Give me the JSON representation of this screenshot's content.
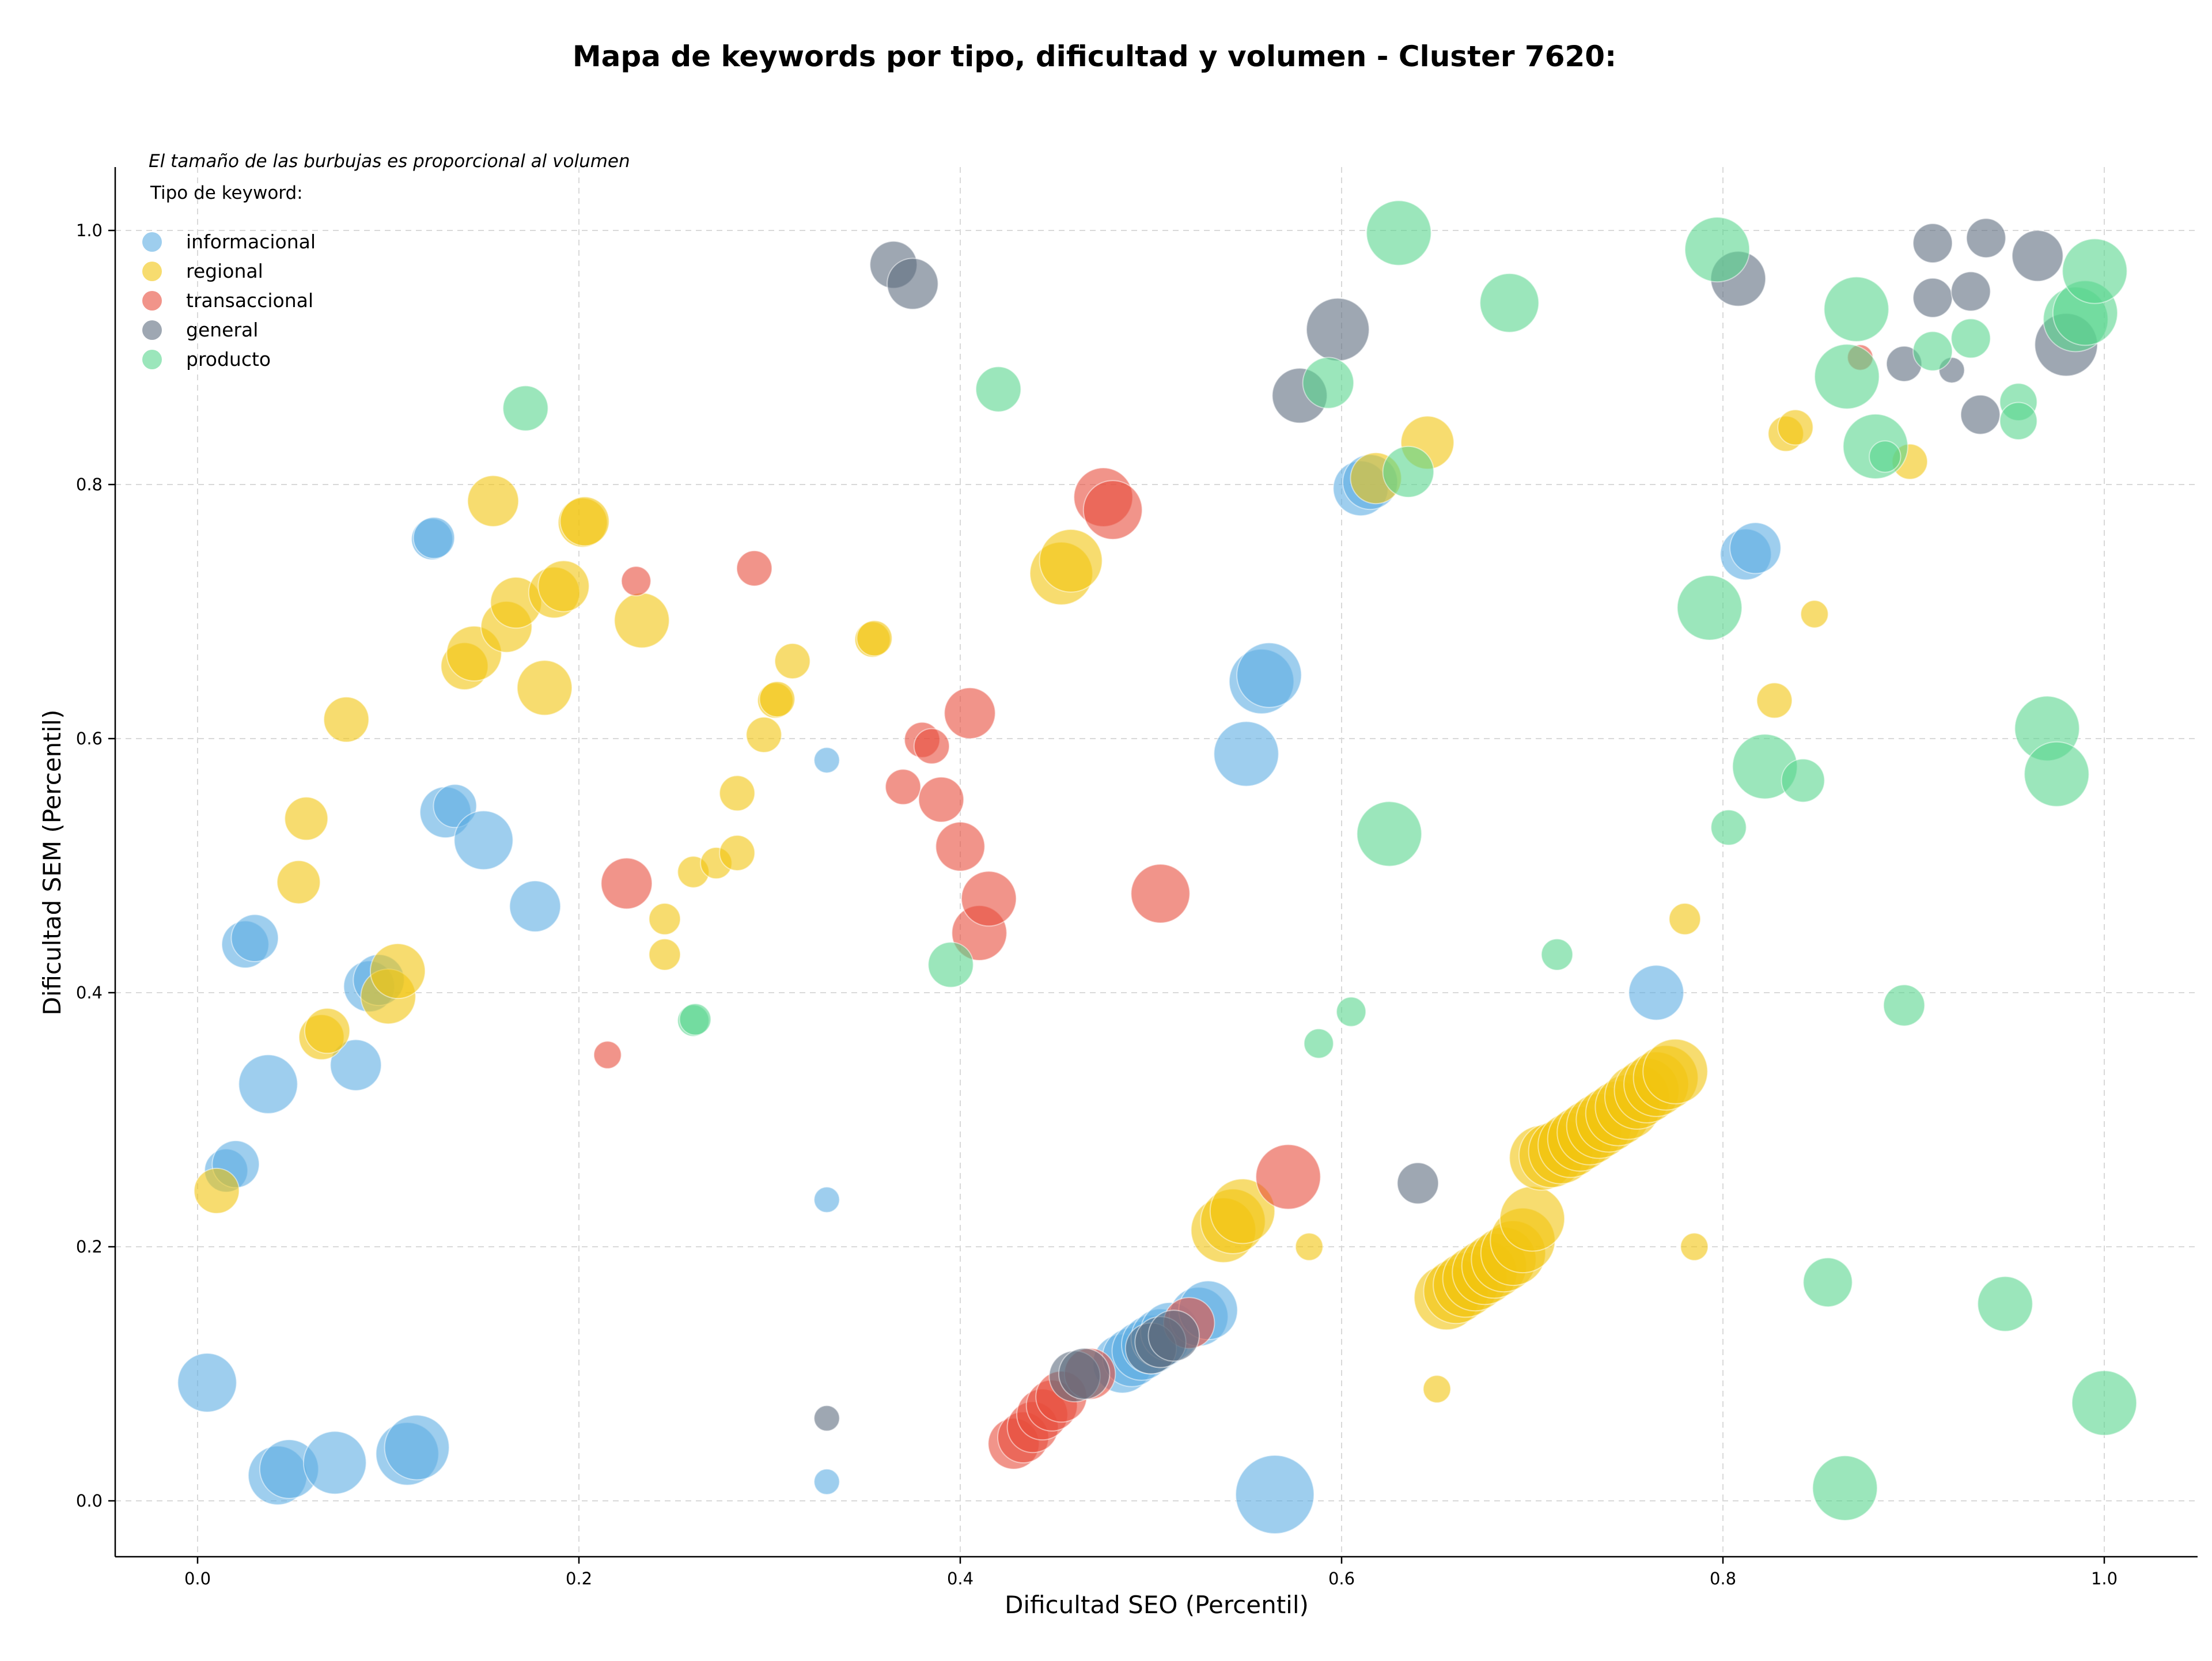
{
  "chart_data": {
    "type": "scatter",
    "title": "Mapa de keywords por tipo, dificultad y volumen - Cluster 7620:",
    "annotation": "El tamaño de las burbujas es proporcional al volumen",
    "xlabel": "Dificultad SEO (Percentil)",
    "ylabel": "Dificultad SEM (Percentil)",
    "xlim": [
      -0.044,
      1.048
    ],
    "ylim": [
      -0.044,
      1.05
    ],
    "xticks": [
      "0.0",
      "0.2",
      "0.4",
      "0.6",
      "0.8",
      "1.0"
    ],
    "yticks": [
      "0.0",
      "0.2",
      "0.4",
      "0.6",
      "0.8",
      "1.0"
    ],
    "grid": true,
    "legend": {
      "title": "Tipo de keyword:",
      "placement": "top-left"
    },
    "series": [
      {
        "name": "informacional",
        "color": "#5DADE2",
        "points": [
          [
            0.005,
            0.093,
            3
          ],
          [
            0.042,
            0.02,
            3
          ],
          [
            0.048,
            0.025,
            3
          ],
          [
            0.072,
            0.03,
            3.2
          ],
          [
            0.11,
            0.037,
            3.2
          ],
          [
            0.115,
            0.042,
            3.3
          ],
          [
            0.015,
            0.26,
            2.2
          ],
          [
            0.02,
            0.265,
            2.4
          ],
          [
            0.037,
            0.328,
            3
          ],
          [
            0.083,
            0.343,
            2.6
          ],
          [
            0.025,
            0.438,
            2.4
          ],
          [
            0.03,
            0.443,
            2.4
          ],
          [
            0.09,
            0.405,
            2.6
          ],
          [
            0.095,
            0.41,
            2.6
          ],
          [
            0.13,
            0.542,
            2.6
          ],
          [
            0.135,
            0.547,
            2.2
          ],
          [
            0.15,
            0.52,
            3
          ],
          [
            0.177,
            0.468,
            2.6
          ],
          [
            0.123,
            0.757,
            2.1
          ],
          [
            0.124,
            0.758,
            2.1
          ],
          [
            0.33,
            0.583,
            1.3
          ],
          [
            0.33,
            0.237,
            1.3
          ],
          [
            0.33,
            0.015,
            1.3
          ],
          [
            0.485,
            0.108,
            3
          ],
          [
            0.49,
            0.113,
            3
          ],
          [
            0.495,
            0.118,
            3
          ],
          [
            0.5,
            0.123,
            3
          ],
          [
            0.505,
            0.128,
            3
          ],
          [
            0.51,
            0.133,
            3
          ],
          [
            0.525,
            0.145,
            3
          ],
          [
            0.53,
            0.15,
            3
          ],
          [
            0.55,
            0.588,
            3.3
          ],
          [
            0.558,
            0.645,
            3.3
          ],
          [
            0.562,
            0.65,
            3.3
          ],
          [
            0.565,
            0.005,
            4
          ],
          [
            0.61,
            0.797,
            2.8
          ],
          [
            0.615,
            0.802,
            2.8
          ],
          [
            0.765,
            0.4,
            2.8
          ],
          [
            0.812,
            0.745,
            2.6
          ],
          [
            0.817,
            0.75,
            2.6
          ]
        ]
      },
      {
        "name": "regional",
        "color": "#F1C40F",
        "points": [
          [
            0.01,
            0.244,
            2.3
          ],
          [
            0.053,
            0.487,
            2.2
          ],
          [
            0.057,
            0.537,
            2.2
          ],
          [
            0.065,
            0.365,
            2.3
          ],
          [
            0.068,
            0.37,
            2.3
          ],
          [
            0.078,
            0.615,
            2.3
          ],
          [
            0.1,
            0.397,
            2.8
          ],
          [
            0.105,
            0.417,
            2.8
          ],
          [
            0.14,
            0.657,
            2.4
          ],
          [
            0.145,
            0.667,
            2.8
          ],
          [
            0.155,
            0.787,
            2.6
          ],
          [
            0.162,
            0.688,
            2.6
          ],
          [
            0.167,
            0.707,
            2.6
          ],
          [
            0.182,
            0.64,
            2.8
          ],
          [
            0.187,
            0.715,
            2.6
          ],
          [
            0.192,
            0.72,
            2.6
          ],
          [
            0.202,
            0.77,
            2.5
          ],
          [
            0.203,
            0.771,
            2.5
          ],
          [
            0.233,
            0.693,
            2.8
          ],
          [
            0.245,
            0.458,
            1.6
          ],
          [
            0.245,
            0.43,
            1.6
          ],
          [
            0.26,
            0.495,
            1.6
          ],
          [
            0.272,
            0.502,
            1.6
          ],
          [
            0.283,
            0.51,
            1.8
          ],
          [
            0.283,
            0.557,
            1.8
          ],
          [
            0.297,
            0.603,
            1.8
          ],
          [
            0.303,
            0.63,
            1.8
          ],
          [
            0.304,
            0.631,
            1.8
          ],
          [
            0.312,
            0.661,
            1.8
          ],
          [
            0.354,
            0.678,
            1.8
          ],
          [
            0.355,
            0.679,
            1.8
          ],
          [
            0.453,
            0.73,
            3.2
          ],
          [
            0.458,
            0.74,
            3.2
          ],
          [
            0.538,
            0.213,
            3.3
          ],
          [
            0.543,
            0.22,
            3.3
          ],
          [
            0.548,
            0.228,
            3.3
          ],
          [
            0.583,
            0.2,
            1.4
          ],
          [
            0.618,
            0.805,
            2.6
          ],
          [
            0.645,
            0.833,
            2.7
          ],
          [
            0.65,
            0.088,
            1.4
          ],
          [
            0.655,
            0.16,
            3.3
          ],
          [
            0.66,
            0.165,
            3.3
          ],
          [
            0.665,
            0.17,
            3.3
          ],
          [
            0.67,
            0.175,
            3.3
          ],
          [
            0.675,
            0.18,
            3.3
          ],
          [
            0.68,
            0.185,
            3.3
          ],
          [
            0.685,
            0.19,
            3.3
          ],
          [
            0.69,
            0.195,
            3.3
          ],
          [
            0.695,
            0.205,
            3.3
          ],
          [
            0.7,
            0.222,
            3.3
          ],
          [
            0.705,
            0.27,
            3.3
          ],
          [
            0.71,
            0.272,
            3.3
          ],
          [
            0.715,
            0.275,
            3.3
          ],
          [
            0.72,
            0.28,
            3.3
          ],
          [
            0.725,
            0.285,
            3.3
          ],
          [
            0.73,
            0.29,
            3.3
          ],
          [
            0.735,
            0.295,
            3.3
          ],
          [
            0.74,
            0.3,
            3.3
          ],
          [
            0.745,
            0.305,
            3.3
          ],
          [
            0.75,
            0.31,
            3.3
          ],
          [
            0.755,
            0.318,
            3.3
          ],
          [
            0.76,
            0.323,
            3.3
          ],
          [
            0.765,
            0.328,
            3.3
          ],
          [
            0.77,
            0.333,
            3.3
          ],
          [
            0.775,
            0.338,
            3.3
          ],
          [
            0.78,
            0.458,
            1.6
          ],
          [
            0.785,
            0.2,
            1.4
          ],
          [
            0.827,
            0.63,
            1.8
          ],
          [
            0.833,
            0.84,
            1.8
          ],
          [
            0.838,
            0.845,
            1.8
          ],
          [
            0.848,
            0.698,
            1.4
          ],
          [
            0.898,
            0.818,
            1.8
          ]
        ]
      },
      {
        "name": "transaccional",
        "color": "#E74C3C",
        "points": [
          [
            0.215,
            0.351,
            1.4
          ],
          [
            0.225,
            0.486,
            2.6
          ],
          [
            0.23,
            0.724,
            1.5
          ],
          [
            0.292,
            0.734,
            1.8
          ],
          [
            0.37,
            0.562,
            1.8
          ],
          [
            0.38,
            0.599,
            1.8
          ],
          [
            0.385,
            0.594,
            1.8
          ],
          [
            0.39,
            0.552,
            2.3
          ],
          [
            0.4,
            0.515,
            2.5
          ],
          [
            0.405,
            0.62,
            2.6
          ],
          [
            0.41,
            0.447,
            2.8
          ],
          [
            0.415,
            0.474,
            2.8
          ],
          [
            0.428,
            0.045,
            2.6
          ],
          [
            0.433,
            0.05,
            2.6
          ],
          [
            0.438,
            0.058,
            2.6
          ],
          [
            0.443,
            0.068,
            2.6
          ],
          [
            0.448,
            0.075,
            2.6
          ],
          [
            0.453,
            0.082,
            2.6
          ],
          [
            0.468,
            0.1,
            2.6
          ],
          [
            0.475,
            0.79,
            3
          ],
          [
            0.48,
            0.78,
            3
          ],
          [
            0.505,
            0.478,
            3
          ],
          [
            0.52,
            0.14,
            2.6
          ],
          [
            0.572,
            0.255,
            3.3
          ],
          [
            0.872,
            0.9,
            1.3
          ]
        ]
      },
      {
        "name": "general",
        "color": "#5D6D7E",
        "points": [
          [
            0.33,
            0.065,
            1.3
          ],
          [
            0.365,
            0.973,
            2.4
          ],
          [
            0.375,
            0.958,
            2.6
          ],
          [
            0.46,
            0.098,
            2.6
          ],
          [
            0.465,
            0.1,
            2.6
          ],
          [
            0.5,
            0.12,
            2.6
          ],
          [
            0.505,
            0.125,
            2.6
          ],
          [
            0.512,
            0.13,
            2.6
          ],
          [
            0.578,
            0.87,
            2.8
          ],
          [
            0.598,
            0.922,
            3.2
          ],
          [
            0.64,
            0.25,
            2.1
          ],
          [
            0.808,
            0.962,
            2.8
          ],
          [
            0.895,
            0.895,
            1.8
          ],
          [
            0.91,
            0.947,
            2
          ],
          [
            0.91,
            0.99,
            2
          ],
          [
            0.92,
            0.89,
            1.3
          ],
          [
            0.93,
            0.952,
            2
          ],
          [
            0.935,
            0.855,
            2
          ],
          [
            0.938,
            0.994,
            2
          ],
          [
            0.965,
            0.98,
            2.6
          ],
          [
            0.98,
            0.91,
            3.2
          ]
        ]
      },
      {
        "name": "producto",
        "color": "#58D68D",
        "points": [
          [
            0.172,
            0.86,
            2.3
          ],
          [
            0.26,
            0.378,
            1.6
          ],
          [
            0.261,
            0.379,
            1.6
          ],
          [
            0.395,
            0.422,
            2.3
          ],
          [
            0.42,
            0.875,
            2.3
          ],
          [
            0.588,
            0.36,
            1.5
          ],
          [
            0.593,
            0.88,
            2.6
          ],
          [
            0.605,
            0.385,
            1.5
          ],
          [
            0.625,
            0.525,
            3.3
          ],
          [
            0.63,
            0.998,
            3.3
          ],
          [
            0.635,
            0.81,
            2.6
          ],
          [
            0.688,
            0.943,
            3
          ],
          [
            0.713,
            0.43,
            1.6
          ],
          [
            0.793,
            0.703,
            3.3
          ],
          [
            0.797,
            0.985,
            3.3
          ],
          [
            0.803,
            0.53,
            1.8
          ],
          [
            0.822,
            0.578,
            3.3
          ],
          [
            0.842,
            0.567,
            2.2
          ],
          [
            0.855,
            0.172,
            2.5
          ],
          [
            0.864,
            0.01,
            3.3
          ],
          [
            0.865,
            0.885,
            3.3
          ],
          [
            0.87,
            0.938,
            3.3
          ],
          [
            0.88,
            0.83,
            3.3
          ],
          [
            0.885,
            0.822,
            1.6
          ],
          [
            0.895,
            0.39,
            2.1
          ],
          [
            0.91,
            0.905,
            2
          ],
          [
            0.93,
            0.915,
            2
          ],
          [
            0.948,
            0.155,
            2.8
          ],
          [
            0.955,
            0.865,
            1.9
          ],
          [
            0.955,
            0.85,
            1.9
          ],
          [
            0.97,
            0.608,
            3.3
          ],
          [
            0.975,
            0.572,
            3.3
          ],
          [
            0.985,
            0.93,
            3.3
          ],
          [
            0.99,
            0.935,
            3.3
          ],
          [
            0.995,
            0.968,
            3.3
          ],
          [
            1.0,
            0.077,
            3.3
          ]
        ]
      }
    ]
  }
}
